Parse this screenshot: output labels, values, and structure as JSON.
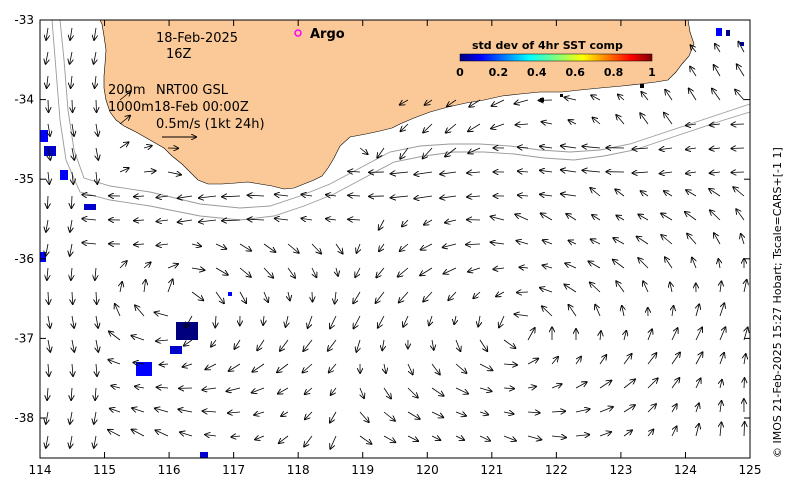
{
  "map": {
    "date_line": "18-Feb-2025",
    "time_line": "16Z",
    "depth_line_1": "200m",
    "product_label": "NRT00 GSL",
    "depth_line_2": "1000m",
    "ssh_time": "18-Feb 00:00Z",
    "scale_label": "0.5m/s (1kt 24h)",
    "argo_label": "Argo",
    "credit": "© IMOS 21-Feb-2025 15:27 Hobart; Tscale=CARS+[-1 1]",
    "x_ticks": [
      "114",
      "115",
      "116",
      "117",
      "118",
      "119",
      "120",
      "121",
      "122",
      "123",
      "124",
      "125"
    ],
    "y_ticks": [
      "-33",
      "-34",
      "-35",
      "-36",
      "-37",
      "-38"
    ],
    "land_color": "#fbc998",
    "argo_color": "#ff00ff"
  },
  "colorbar": {
    "title": "std dev of 4hr SST comp",
    "labels": [
      "0",
      "0.2",
      "0.4",
      "0.6",
      "0.8",
      "1"
    ],
    "colors": [
      "#00007f",
      "#0000ff",
      "#007fff",
      "#00ffff",
      "#7fff7f",
      "#ffff00",
      "#ff7f00",
      "#ff0000",
      "#7f0000"
    ]
  }
}
